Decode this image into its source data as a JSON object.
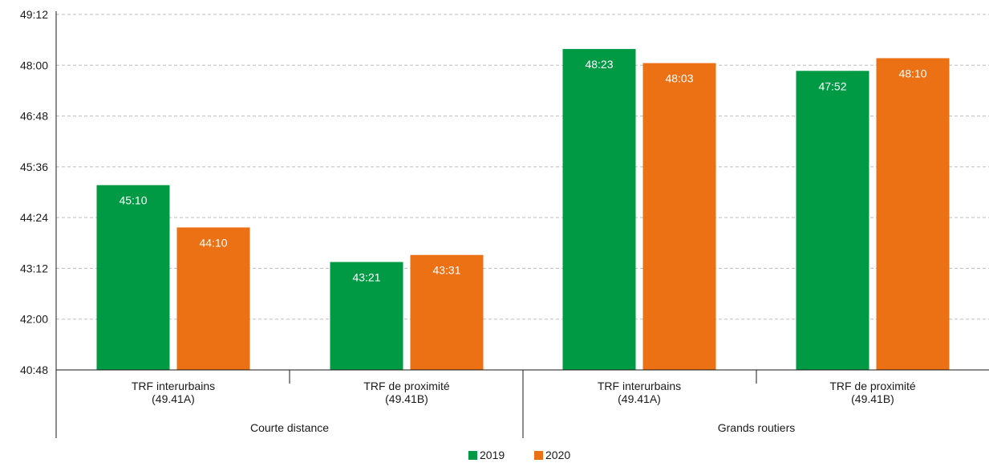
{
  "chart_data": {
    "type": "bar",
    "y_unit": "hours:minutes",
    "ylim": [
      "40:48",
      "49:12"
    ],
    "yticks": [
      "40:48",
      "42:00",
      "43:12",
      "44:24",
      "45:36",
      "46:48",
      "48:00",
      "49:12"
    ],
    "grid": true,
    "legend_position": "bottom-center",
    "groups": [
      {
        "label": "Courte distance",
        "categories": [
          {
            "line1": "TRF interurbains",
            "line2": "(49.41A)"
          },
          {
            "line1": "TRF de proximité",
            "line2": "(49.41B)"
          }
        ]
      },
      {
        "label": "Grands routiers",
        "categories": [
          {
            "line1": "TRF interurbains",
            "line2": "(49.41A)"
          },
          {
            "line1": "TRF de proximité",
            "line2": "(49.41B)"
          }
        ]
      }
    ],
    "series": [
      {
        "name": "2019",
        "color": "#009a44",
        "values": [
          "45:10",
          "43:21",
          "48:23",
          "47:52"
        ]
      },
      {
        "name": "2020",
        "color": "#ec7014",
        "values": [
          "44:10",
          "43:31",
          "48:03",
          "48:10"
        ]
      }
    ]
  }
}
